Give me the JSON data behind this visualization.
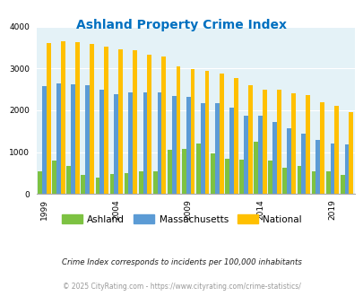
{
  "title": "Ashland Property Crime Index",
  "years": [
    1999,
    2000,
    2001,
    2002,
    2003,
    2004,
    2005,
    2006,
    2007,
    2008,
    2009,
    2010,
    2011,
    2012,
    2013,
    2014,
    2015,
    2016,
    2017,
    2018,
    2019,
    2020
  ],
  "ashland": [
    540,
    790,
    670,
    460,
    400,
    480,
    490,
    550,
    550,
    1060,
    1070,
    1200,
    970,
    840,
    810,
    1250,
    790,
    620,
    660,
    540,
    550,
    450
  ],
  "massachusetts": [
    2580,
    2640,
    2620,
    2590,
    2490,
    2380,
    2420,
    2430,
    2420,
    2340,
    2320,
    2160,
    2160,
    2060,
    1870,
    1870,
    1710,
    1570,
    1450,
    1280,
    1200,
    1180
  ],
  "national": [
    3610,
    3660,
    3630,
    3590,
    3530,
    3460,
    3440,
    3330,
    3280,
    3050,
    2990,
    2940,
    2870,
    2760,
    2590,
    2500,
    2490,
    2400,
    2370,
    2200,
    2110,
    1958
  ],
  "color_ashland": "#7dc242",
  "color_mass": "#5b9bd5",
  "color_national": "#ffc000",
  "bg_color": "#e4f2f7",
  "title_color": "#0070c0",
  "ylim": [
    0,
    4000
  ],
  "yticks": [
    0,
    1000,
    2000,
    3000,
    4000
  ],
  "xtick_years": [
    1999,
    2004,
    2009,
    2014,
    2019
  ],
  "legend_labels": [
    "Ashland",
    "Massachusetts",
    "National"
  ],
  "footnote1": "Crime Index corresponds to incidents per 100,000 inhabitants",
  "footnote2": "© 2025 CityRating.com - https://www.cityrating.com/crime-statistics/",
  "footnote1_color": "#222222",
  "footnote2_color": "#999999"
}
